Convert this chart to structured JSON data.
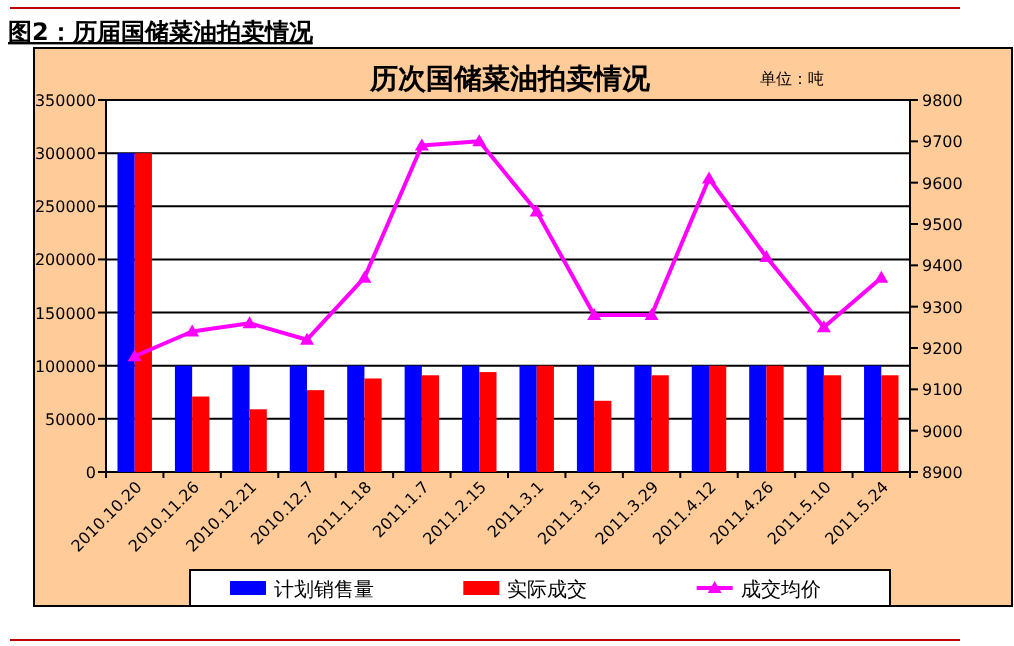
{
  "chart_data": {
    "type": "bar",
    "title": "历次国储菜油拍卖情况",
    "subtitle": "单位：吨",
    "annotations": [
      "图2：历届国储菜油拍卖情况"
    ],
    "categories": [
      "2010.10.20",
      "2010.11.26",
      "2010.12.21",
      "2010.12.7",
      "2011.1.18",
      "2011.1.7",
      "2011.2.15",
      "2011.3.1",
      "2011.3.15",
      "2011.3.29",
      "2011.4.12",
      "2011.4.26",
      "2011.5.10",
      "2011.5.24"
    ],
    "series": [
      {
        "name": "计划销售量",
        "color": "#0000ff",
        "values": [
          300000,
          100000,
          100000,
          100000,
          100000,
          100000,
          100000,
          100000,
          100000,
          100000,
          100000,
          100000,
          100000,
          100000
        ]
      },
      {
        "name": "实际成交",
        "color": "#ff0000",
        "values": [
          300000,
          71000,
          59000,
          77000,
          88000,
          91000,
          94000,
          100000,
          67000,
          91000,
          100000,
          100000,
          91000,
          91000
        ]
      },
      {
        "name": "成交均价",
        "type": "line",
        "axis": "y2",
        "color": "#ff00ff",
        "marker": "triangle",
        "values": [
          9180,
          9240,
          9260,
          9220,
          9370,
          9690,
          9700,
          9530,
          9280,
          9280,
          9610,
          9420,
          9250,
          9370
        ]
      }
    ],
    "ylim": [
      0,
      350000
    ],
    "yticks": [
      0,
      50000,
      100000,
      150000,
      200000,
      250000,
      300000,
      350000
    ],
    "y2lim": [
      8900,
      9800
    ],
    "y2ticks": [
      8900,
      9000,
      9100,
      9200,
      9300,
      9400,
      9500,
      9600,
      9700,
      9800
    ],
    "grid": "y",
    "legend": "bottom"
  }
}
